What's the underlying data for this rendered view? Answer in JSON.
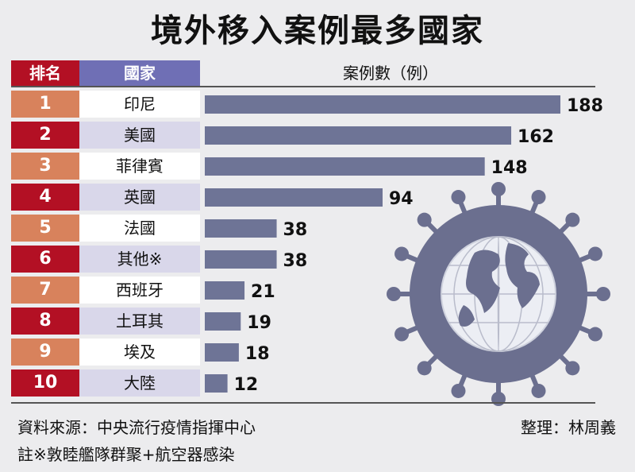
{
  "title": "境外移入案例最多國家",
  "header": {
    "rank": "排名",
    "country": "國家",
    "count": "案例數（例）"
  },
  "colors": {
    "rank_odd": "#d8825c",
    "rank_even": "#b31024",
    "country_odd": "#ffffff",
    "country_even": "#d9d7ea",
    "bar": "#6e7496",
    "virus": "#6b6f8f"
  },
  "chart_data": {
    "type": "bar",
    "orientation": "horizontal",
    "title": "境外移入案例最多國家",
    "ylabel": "案例數（例）",
    "ranks": [
      "1",
      "2",
      "3",
      "4",
      "5",
      "6",
      "7",
      "8",
      "9",
      "10"
    ],
    "categories": [
      "印尼",
      "美國",
      "菲律賓",
      "英國",
      "法國",
      "其他※",
      "西班牙",
      "土耳其",
      "埃及",
      "大陸"
    ],
    "values": [
      188,
      162,
      148,
      94,
      38,
      38,
      21,
      19,
      18,
      12
    ],
    "xlim": [
      0,
      188
    ]
  },
  "footer": {
    "source": "資料來源：中央流行疫情指揮中心",
    "editor": "整理：林周義",
    "note": "註※敦睦艦隊群聚+航空器感染"
  }
}
